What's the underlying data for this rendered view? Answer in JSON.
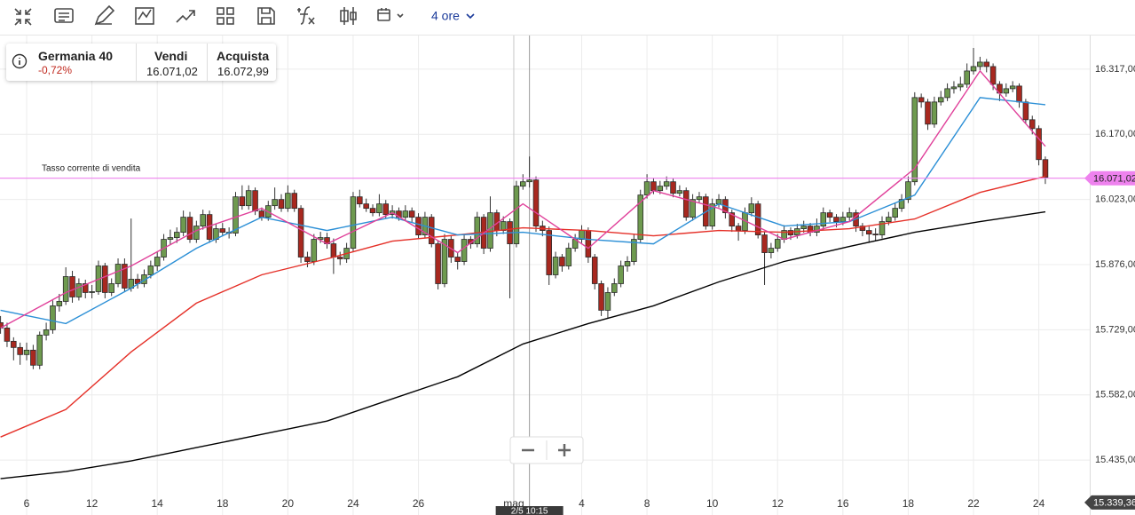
{
  "toolbar": {
    "timeframe": "4 ore"
  },
  "instrument": {
    "name": "Germania 40",
    "change": "-0,72%",
    "sell_label": "Vendi",
    "sell": "16.071,02",
    "buy_label": "Acquista",
    "buy": "16.072,99"
  },
  "chart_data": {
    "type": "candlestick",
    "annotation": "Tasso corrente di vendita",
    "up_color": "#6e9a4f",
    "down_color": "#a8281f",
    "grid": true,
    "xlim": [
      -0.08,
      166.8
    ],
    "ylim": [
      15315,
      16393
    ],
    "yticks": [
      {
        "value": 16317,
        "label": "16.317,00"
      },
      {
        "value": 16170,
        "label": "16.170,00"
      },
      {
        "value": 16023,
        "label": "16.023,00"
      },
      {
        "value": 15876,
        "label": "15.876,00"
      },
      {
        "value": 15729,
        "label": "15.729,00"
      },
      {
        "value": 15582,
        "label": "15.582,00"
      },
      {
        "value": 15435,
        "label": "15.435,00"
      }
    ],
    "xticks": [
      {
        "value": 4,
        "label": "6"
      },
      {
        "value": 14,
        "label": "12"
      },
      {
        "value": 24,
        "label": "14"
      },
      {
        "value": 34,
        "label": "18"
      },
      {
        "value": 44,
        "label": "20"
      },
      {
        "value": 54,
        "label": "24"
      },
      {
        "value": 64,
        "label": "26"
      },
      {
        "value": 78.6,
        "label": "mag"
      },
      {
        "value": 89,
        "label": "4"
      },
      {
        "value": 99,
        "label": "8"
      },
      {
        "value": 109,
        "label": "10"
      },
      {
        "value": 119,
        "label": "12"
      },
      {
        "value": 129,
        "label": "16"
      },
      {
        "value": 139,
        "label": "18"
      },
      {
        "value": 149,
        "label": "22"
      },
      {
        "value": 159,
        "label": "24"
      }
    ],
    "current_price": {
      "value": 16071.02,
      "label": "16.071,02",
      "color": "#ee82ee"
    },
    "ma_price": {
      "value": 15339.36,
      "label": "15.339,36"
    },
    "crosshair": {
      "value": 81,
      "label": "2/5 10:15"
    },
    "ohlc": [
      [
        15745,
        15760,
        15720,
        15733
      ],
      [
        15733,
        15745,
        15690,
        15703
      ],
      [
        15703,
        15712,
        15660,
        15689
      ],
      [
        15689,
        15700,
        15650,
        15673
      ],
      [
        15673,
        15700,
        15660,
        15683
      ],
      [
        15683,
        15695,
        15640,
        15649
      ],
      [
        15649,
        15725,
        15640,
        15717
      ],
      [
        15717,
        15745,
        15705,
        15729
      ],
      [
        15729,
        15795,
        15720,
        15783
      ],
      [
        15783,
        15810,
        15770,
        15793
      ],
      [
        15793,
        15870,
        15785,
        15849
      ],
      [
        15849,
        15862,
        15790,
        15803
      ],
      [
        15803,
        15845,
        15795,
        15833
      ],
      [
        15833,
        15842,
        15800,
        15813
      ],
      [
        15813,
        15830,
        15800,
        15815
      ],
      [
        15815,
        15885,
        15808,
        15873
      ],
      [
        15873,
        15880,
        15800,
        15813
      ],
      [
        15813,
        15845,
        15805,
        15833
      ],
      [
        15833,
        15890,
        15825,
        15877
      ],
      [
        15877,
        15890,
        15815,
        15823
      ],
      [
        15823,
        15980,
        15815,
        15843
      ],
      [
        15843,
        15855,
        15822,
        15833
      ],
      [
        15833,
        15865,
        15825,
        15853
      ],
      [
        15853,
        15885,
        15845,
        15873
      ],
      [
        15873,
        15905,
        15862,
        15893
      ],
      [
        15893,
        15945,
        15885,
        15933
      ],
      [
        15933,
        15955,
        15920,
        15937
      ],
      [
        15937,
        15960,
        15925,
        15949
      ],
      [
        15949,
        15998,
        15940,
        15983
      ],
      [
        15983,
        15995,
        15925,
        15933
      ],
      [
        15933,
        15975,
        15925,
        15963
      ],
      [
        15963,
        16000,
        15955,
        15989
      ],
      [
        15989,
        15998,
        15925,
        15933
      ],
      [
        15933,
        15968,
        15925,
        15957
      ],
      [
        15957,
        15970,
        15940,
        15949
      ],
      [
        15949,
        15960,
        15935,
        15947
      ],
      [
        15947,
        16040,
        15940,
        16029
      ],
      [
        16029,
        16055,
        16000,
        16009
      ],
      [
        16009,
        16055,
        16000,
        16043
      ],
      [
        16043,
        16050,
        15988,
        15997
      ],
      [
        15997,
        16005,
        15975,
        15983
      ],
      [
        15983,
        16020,
        15975,
        16009
      ],
      [
        16009,
        16050,
        16000,
        16023
      ],
      [
        16023,
        16035,
        15995,
        16003
      ],
      [
        16003,
        16055,
        15995,
        16037
      ],
      [
        16037,
        16045,
        15995,
        16003
      ],
      [
        16003,
        16010,
        15880,
        15893
      ],
      [
        15893,
        15905,
        15870,
        15883
      ],
      [
        15883,
        15945,
        15875,
        15933
      ],
      [
        15933,
        15950,
        15925,
        15937
      ],
      [
        15937,
        15948,
        15912,
        15923
      ],
      [
        15923,
        15935,
        15855,
        15893
      ],
      [
        15893,
        15905,
        15875,
        15889
      ],
      [
        15889,
        15925,
        15880,
        15913
      ],
      [
        15913,
        16040,
        15905,
        16029
      ],
      [
        16029,
        16045,
        16005,
        16013
      ],
      [
        16013,
        16025,
        15995,
        16003
      ],
      [
        16003,
        16012,
        15985,
        15993
      ],
      [
        15993,
        16035,
        15985,
        16013
      ],
      [
        16013,
        16022,
        15980,
        15989
      ],
      [
        15989,
        16010,
        15980,
        15997
      ],
      [
        15997,
        16005,
        15975,
        15983
      ],
      [
        15983,
        16010,
        15975,
        15997
      ],
      [
        15997,
        16005,
        15970,
        15983
      ],
      [
        15983,
        15992,
        15935,
        15943
      ],
      [
        15943,
        15995,
        15935,
        15983
      ],
      [
        15983,
        15990,
        15915,
        15923
      ],
      [
        15923,
        15930,
        15820,
        15833
      ],
      [
        15833,
        15945,
        15825,
        15933
      ],
      [
        15933,
        15942,
        15880,
        15893
      ],
      [
        15893,
        15905,
        15865,
        15883
      ],
      [
        15883,
        15945,
        15875,
        15933
      ],
      [
        15933,
        15940,
        15912,
        15923
      ],
      [
        15923,
        15995,
        15915,
        15983
      ],
      [
        15983,
        15990,
        15900,
        15913
      ],
      [
        15913,
        16030,
        15905,
        15993
      ],
      [
        15993,
        16000,
        15940,
        15953
      ],
      [
        15953,
        15985,
        15945,
        15973
      ],
      [
        15973,
        15980,
        15800,
        15923
      ],
      [
        15923,
        16065,
        15915,
        16053
      ],
      [
        16053,
        16080,
        16045,
        16063
      ],
      [
        16063,
        16120,
        16050,
        16067
      ],
      [
        16067,
        16075,
        15950,
        15963
      ],
      [
        15963,
        15975,
        15940,
        15953
      ],
      [
        15953,
        15962,
        15830,
        15853
      ],
      [
        15853,
        15905,
        15845,
        15893
      ],
      [
        15893,
        15900,
        15860,
        15873
      ],
      [
        15873,
        15925,
        15865,
        15913
      ],
      [
        15913,
        15945,
        15905,
        15933
      ],
      [
        15933,
        15965,
        15925,
        15953
      ],
      [
        15953,
        15960,
        15880,
        15893
      ],
      [
        15893,
        15900,
        15820,
        15833
      ],
      [
        15833,
        15840,
        15760,
        15773
      ],
      [
        15773,
        15825,
        15755,
        15813
      ],
      [
        15813,
        15845,
        15805,
        15833
      ],
      [
        15833,
        15885,
        15825,
        15873
      ],
      [
        15873,
        15895,
        15860,
        15883
      ],
      [
        15883,
        15945,
        15875,
        15933
      ],
      [
        15933,
        16045,
        15925,
        16033
      ],
      [
        16033,
        16080,
        16025,
        16063
      ],
      [
        16063,
        16072,
        16035,
        16043
      ],
      [
        16043,
        16065,
        16035,
        16053
      ],
      [
        16053,
        16075,
        16045,
        16063
      ],
      [
        16063,
        16070,
        16028,
        16037
      ],
      [
        16037,
        16055,
        16030,
        16043
      ],
      [
        16043,
        16050,
        15975,
        15983
      ],
      [
        15983,
        16035,
        15975,
        16023
      ],
      [
        16023,
        16040,
        16015,
        16029
      ],
      [
        16029,
        16036,
        15955,
        15963
      ],
      [
        15963,
        16025,
        15955,
        16013
      ],
      [
        16013,
        16035,
        16005,
        16023
      ],
      [
        16023,
        16030,
        15980,
        15993
      ],
      [
        15993,
        16000,
        15950,
        15963
      ],
      [
        15963,
        15970,
        15930,
        15953
      ],
      [
        15953,
        16005,
        15945,
        15993
      ],
      [
        15993,
        16028,
        15985,
        16013
      ],
      [
        16013,
        16020,
        15935,
        15943
      ],
      [
        15943,
        15950,
        15830,
        15903
      ],
      [
        15903,
        15925,
        15890,
        15913
      ],
      [
        15913,
        15945,
        15905,
        15933
      ],
      [
        15933,
        15965,
        15925,
        15953
      ],
      [
        15953,
        15960,
        15932,
        15943
      ],
      [
        15943,
        15968,
        15935,
        15957
      ],
      [
        15957,
        15975,
        15948,
        15963
      ],
      [
        15963,
        15970,
        15940,
        15949
      ],
      [
        15949,
        15980,
        15940,
        15963
      ],
      [
        15963,
        16005,
        15955,
        15993
      ],
      [
        15993,
        16000,
        15972,
        15983
      ],
      [
        15983,
        15990,
        15960,
        15973
      ],
      [
        15973,
        15995,
        15965,
        15983
      ],
      [
        15983,
        16005,
        15975,
        15993
      ],
      [
        15993,
        16000,
        15950,
        15963
      ],
      [
        15963,
        15970,
        15940,
        15953
      ],
      [
        15953,
        15962,
        15925,
        15945
      ],
      [
        15945,
        15958,
        15930,
        15943
      ],
      [
        15943,
        15985,
        15935,
        15973
      ],
      [
        15973,
        15995,
        15965,
        15983
      ],
      [
        15983,
        16015,
        15975,
        16003
      ],
      [
        16003,
        16035,
        15995,
        16023
      ],
      [
        16023,
        16075,
        16015,
        16063
      ],
      [
        16063,
        16265,
        16055,
        16253
      ],
      [
        16253,
        16262,
        16230,
        16243
      ],
      [
        16243,
        16250,
        16180,
        16193
      ],
      [
        16193,
        16255,
        16185,
        16243
      ],
      [
        16243,
        16268,
        16235,
        16253
      ],
      [
        16253,
        16285,
        16245,
        16273
      ],
      [
        16273,
        16290,
        16262,
        16277
      ],
      [
        16277,
        16300,
        16268,
        16283
      ],
      [
        16283,
        16330,
        16275,
        16313
      ],
      [
        16313,
        16365,
        16305,
        16323
      ],
      [
        16323,
        16345,
        16315,
        16333
      ],
      [
        16333,
        16340,
        16310,
        16323
      ],
      [
        16323,
        16330,
        16270,
        16283
      ],
      [
        16283,
        16290,
        16245,
        16263
      ],
      [
        16263,
        16285,
        16255,
        16273
      ],
      [
        16273,
        16290,
        16265,
        16279
      ],
      [
        16279,
        16285,
        16230,
        16243
      ],
      [
        16243,
        16250,
        16195,
        16203
      ],
      [
        16203,
        16212,
        16170,
        16183
      ],
      [
        16183,
        16190,
        16100,
        16113
      ],
      [
        16113,
        16120,
        16058,
        16073
      ]
    ],
    "series": [
      {
        "color": "#000000",
        "x": [
          0,
          10,
          20,
          30,
          40,
          50,
          60,
          70,
          80,
          90,
          100,
          110,
          120,
          130,
          140,
          150,
          160
        ],
        "values": [
          15393,
          15409,
          15433,
          15463,
          15493,
          15523,
          15573,
          15623,
          15697,
          15743,
          15783,
          15837,
          15883,
          15917,
          15949,
          15973,
          15995
        ]
      },
      {
        "color": "#e53028",
        "x": [
          0,
          10,
          20,
          30,
          40,
          50,
          60,
          70,
          80,
          90,
          100,
          110,
          120,
          130,
          140,
          150,
          160
        ],
        "values": [
          15487,
          15549,
          15679,
          15789,
          15853,
          15889,
          15929,
          15943,
          15959,
          15953,
          15941,
          15953,
          15949,
          15957,
          15979,
          16039,
          16075
        ]
      },
      {
        "color": "#2b8fd6",
        "x": [
          0,
          10,
          20,
          30,
          40,
          50,
          60,
          70,
          80,
          90,
          100,
          110,
          120,
          130,
          140,
          150,
          160
        ],
        "values": [
          15773,
          15743,
          15823,
          15913,
          15983,
          15953,
          15983,
          15943,
          15949,
          15933,
          15923,
          16013,
          15963,
          15973,
          16033,
          16253,
          16237
        ]
      },
      {
        "color": "#e0409a",
        "x": [
          0,
          10,
          20,
          30,
          40,
          50,
          60,
          70,
          80,
          90,
          100,
          110,
          120,
          130,
          140,
          150,
          160
        ],
        "values": [
          15733,
          15813,
          15873,
          15953,
          16003,
          15923,
          15993,
          15903,
          16013,
          15913,
          16043,
          16003,
          15933,
          15973,
          16093,
          16313,
          16143
        ]
      }
    ]
  }
}
